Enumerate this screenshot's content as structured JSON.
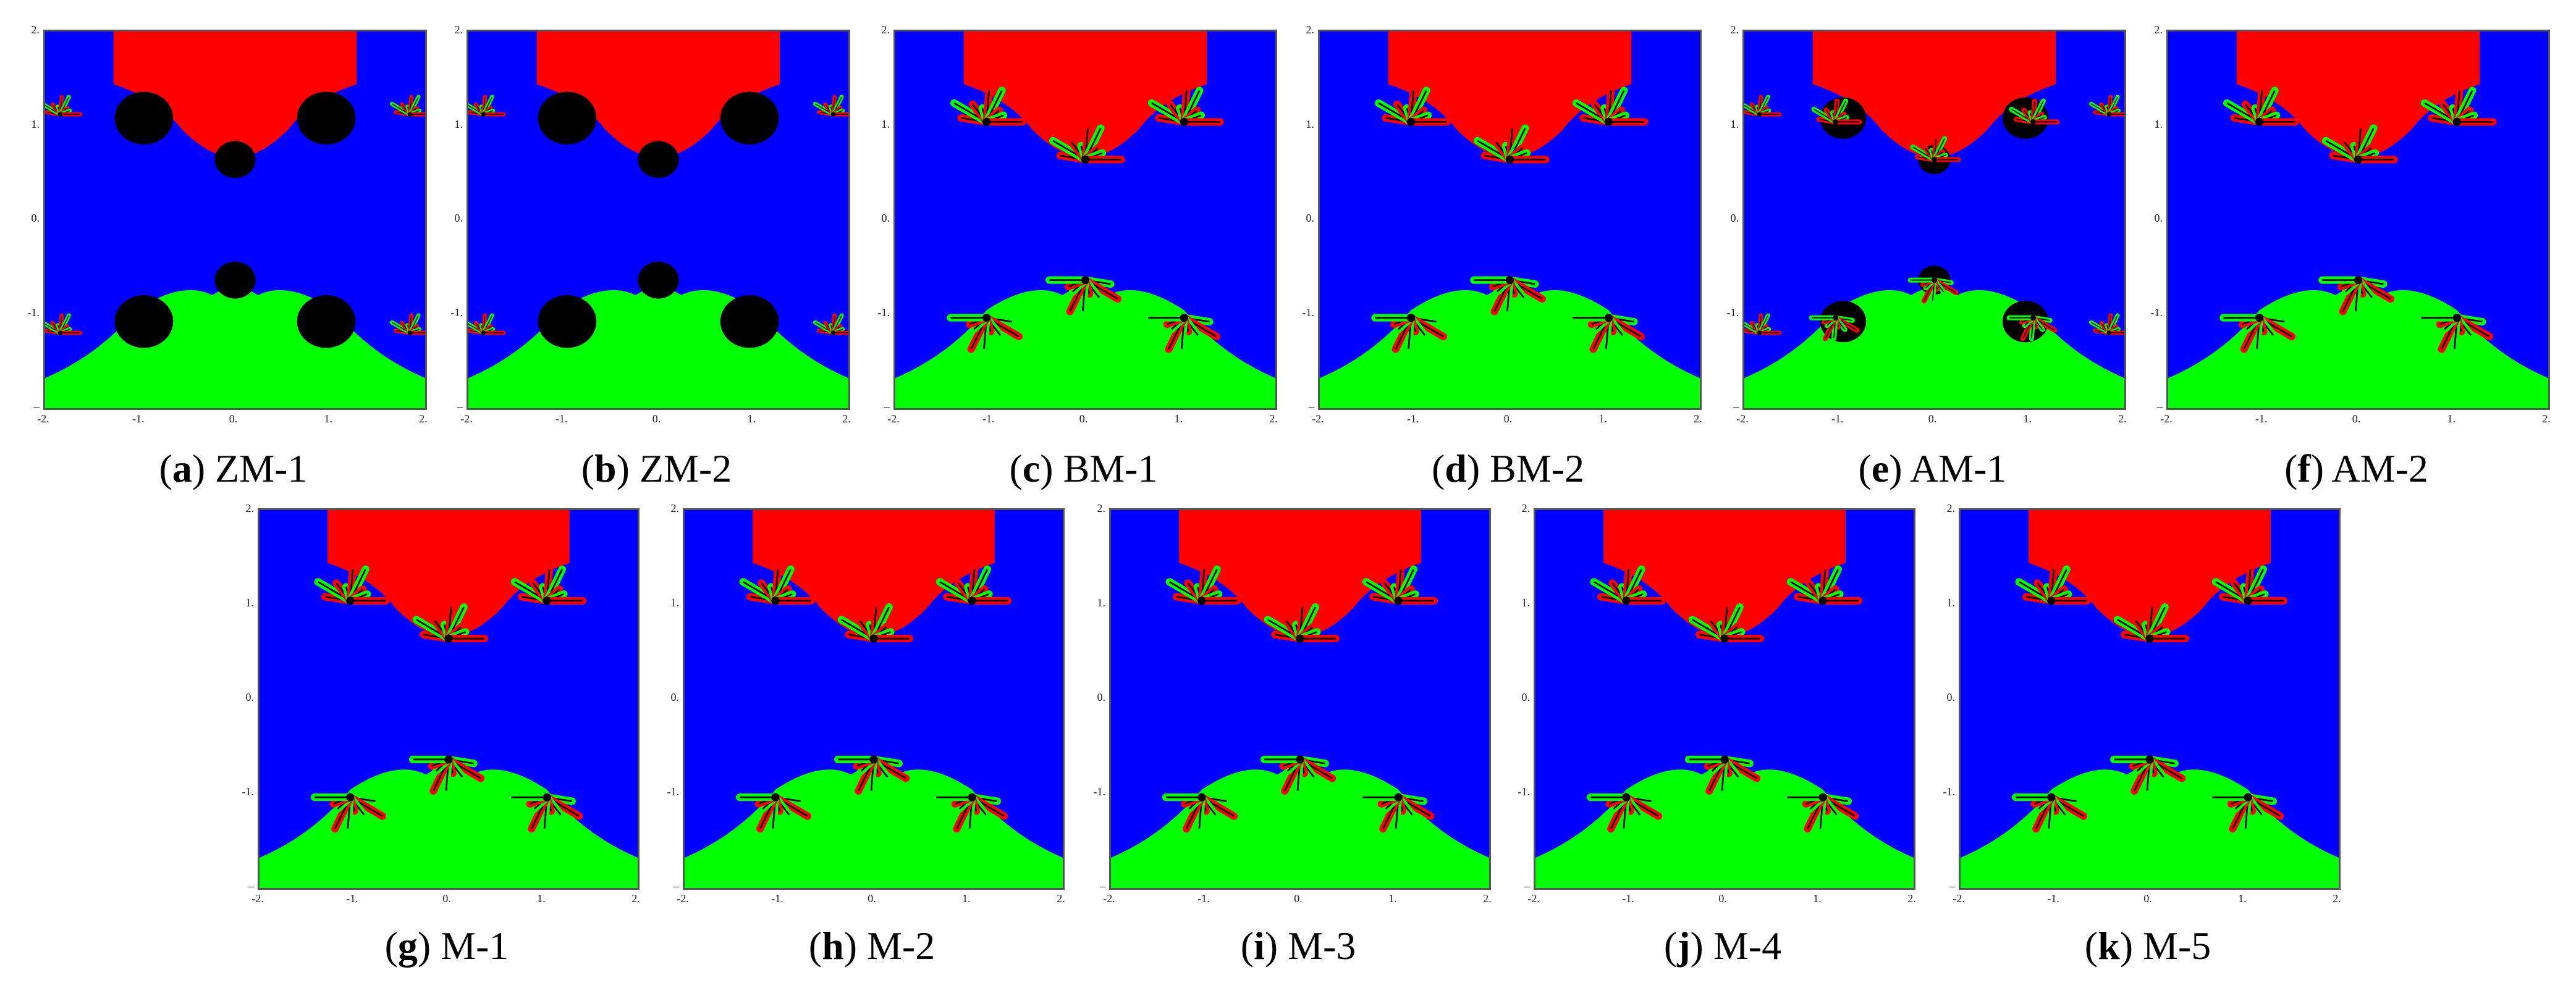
{
  "figure": {
    "y_tick_labels": [
      "2.",
      "1.",
      "0.",
      "-1.",
      "–"
    ],
    "x_tick_labels": [
      "-2.",
      "-1.",
      "0.",
      "1.",
      "2."
    ],
    "colors": {
      "red_basin": "#ff0000",
      "blue_basin": "#0000ff",
      "green_basin": "#00ff00",
      "divergent": "#000000"
    },
    "panels": [
      {
        "letter": "a",
        "name": "ZM-1",
        "style": "blob"
      },
      {
        "letter": "b",
        "name": "ZM-2",
        "style": "blob"
      },
      {
        "letter": "c",
        "name": "BM-1",
        "style": "fern"
      },
      {
        "letter": "d",
        "name": "BM-2",
        "style": "fern"
      },
      {
        "letter": "e",
        "name": "AM-1",
        "style": "mixed"
      },
      {
        "letter": "f",
        "name": "AM-2",
        "style": "fern"
      },
      {
        "letter": "g",
        "name": "M-1",
        "style": "fern"
      },
      {
        "letter": "h",
        "name": "M-2",
        "style": "fern"
      },
      {
        "letter": "i",
        "name": "M-3",
        "style": "fern"
      },
      {
        "letter": "j",
        "name": "M-4",
        "style": "fern"
      },
      {
        "letter": "k",
        "name": "M-5",
        "style": "fern"
      }
    ]
  }
}
